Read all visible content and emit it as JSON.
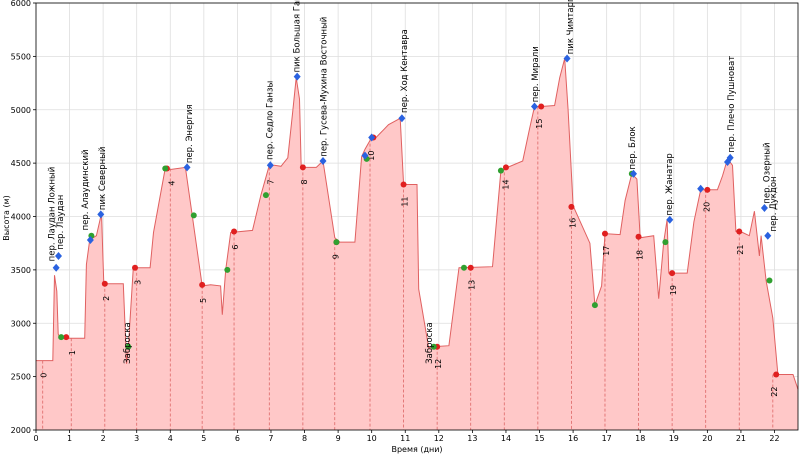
{
  "chart_data": {
    "type": "area",
    "title": "",
    "xlabel": "Время (дни)",
    "ylabel": "Высота (м)",
    "xlim": [
      0,
      22.7
    ],
    "ylim": [
      2000,
      6000
    ],
    "xticks": [
      "0",
      "1",
      "2",
      "3",
      "4",
      "5",
      "6",
      "7",
      "8",
      "9",
      "10",
      "11",
      "12",
      "13",
      "14",
      "15",
      "16",
      "17",
      "18",
      "19",
      "20",
      "21",
      "22"
    ],
    "yticks": [
      "2000",
      "2500",
      "3000",
      "3500",
      "4000",
      "4500",
      "5000",
      "5500",
      "6000"
    ],
    "colors": {
      "fill": "#ffc8c8",
      "line": "#e06060",
      "camp_line": "#dd6666",
      "red": "#e02020",
      "green": "#30a030",
      "blue": "#2a62e0",
      "grid": "#dedede"
    },
    "profile": [
      [
        0,
        2650
      ],
      [
        0.5,
        2650
      ],
      [
        0.55,
        3450
      ],
      [
        0.62,
        3300
      ],
      [
        0.66,
        2900
      ],
      [
        0.7,
        2870
      ],
      [
        0.9,
        2860
      ],
      [
        1.45,
        2860
      ],
      [
        1.5,
        3550
      ],
      [
        1.6,
        3780
      ],
      [
        1.8,
        3820
      ],
      [
        1.95,
        4030
      ],
      [
        2.02,
        3370
      ],
      [
        2.6,
        3370
      ],
      [
        2.7,
        2620
      ],
      [
        2.75,
        2770
      ],
      [
        2.9,
        3520
      ],
      [
        3.4,
        3520
      ],
      [
        3.5,
        3850
      ],
      [
        3.85,
        4450
      ],
      [
        4.0,
        4440
      ],
      [
        4.45,
        4460
      ],
      [
        4.65,
        4020
      ],
      [
        4.95,
        3350
      ],
      [
        5.2,
        3360
      ],
      [
        5.5,
        3350
      ],
      [
        5.55,
        3080
      ],
      [
        5.65,
        3500
      ],
      [
        5.8,
        3850
      ],
      [
        6.45,
        3870
      ],
      [
        6.7,
        4200
      ],
      [
        6.95,
        4480
      ],
      [
        7.1,
        4480
      ],
      [
        7.3,
        4470
      ],
      [
        7.5,
        4550
      ],
      [
        7.65,
        4990
      ],
      [
        7.75,
        5300
      ],
      [
        7.85,
        5100
      ],
      [
        7.9,
        4460
      ],
      [
        8.35,
        4460
      ],
      [
        8.55,
        4520
      ],
      [
        8.9,
        3800
      ],
      [
        9.05,
        3760
      ],
      [
        9.5,
        3760
      ],
      [
        9.7,
        4560
      ],
      [
        9.8,
        4630
      ],
      [
        10.0,
        4740
      ],
      [
        10.1,
        4730
      ],
      [
        10.5,
        4860
      ],
      [
        10.85,
        4920
      ],
      [
        10.95,
        4300
      ],
      [
        11.35,
        4300
      ],
      [
        11.4,
        3320
      ],
      [
        11.7,
        2770
      ],
      [
        11.8,
        2780
      ],
      [
        12.3,
        2790
      ],
      [
        12.6,
        3520
      ],
      [
        13.6,
        3530
      ],
      [
        13.85,
        4430
      ],
      [
        14.05,
        4460
      ],
      [
        14.5,
        4520
      ],
      [
        14.7,
        4820
      ],
      [
        14.85,
        5030
      ],
      [
        15.05,
        5030
      ],
      [
        15.45,
        5040
      ],
      [
        15.6,
        5300
      ],
      [
        15.75,
        5480
      ],
      [
        15.85,
        5000
      ],
      [
        16.0,
        4100
      ],
      [
        16.5,
        3750
      ],
      [
        16.65,
        3170
      ],
      [
        16.85,
        3350
      ],
      [
        16.95,
        3840
      ],
      [
        17.4,
        3830
      ],
      [
        17.55,
        4150
      ],
      [
        17.75,
        4400
      ],
      [
        17.9,
        4350
      ],
      [
        18.0,
        3800
      ],
      [
        18.4,
        3820
      ],
      [
        18.55,
        3230
      ],
      [
        18.7,
        3760
      ],
      [
        18.8,
        3970
      ],
      [
        18.85,
        3470
      ],
      [
        19.4,
        3470
      ],
      [
        19.6,
        3950
      ],
      [
        19.8,
        4250
      ],
      [
        20.3,
        4250
      ],
      [
        20.45,
        4380
      ],
      [
        20.6,
        4540
      ],
      [
        20.75,
        4480
      ],
      [
        20.85,
        3860
      ],
      [
        21.05,
        3850
      ],
      [
        21.25,
        3820
      ],
      [
        21.4,
        4050
      ],
      [
        21.55,
        3630
      ],
      [
        21.6,
        3820
      ],
      [
        21.75,
        3400
      ],
      [
        21.95,
        3050
      ],
      [
        22.1,
        2520
      ],
      [
        22.55,
        2520
      ],
      [
        22.7,
        2380
      ]
    ],
    "camps": [
      {
        "x": 0.2,
        "y": 2650,
        "label": "0"
      },
      {
        "x": 1.05,
        "y": 2860,
        "label": "1"
      },
      {
        "x": 2.05,
        "y": 3370,
        "label": "2"
      },
      {
        "x": 3.0,
        "y": 3520,
        "label": "3"
      },
      {
        "x": 4.0,
        "y": 4450,
        "label": "4"
      },
      {
        "x": 4.95,
        "y": 3350,
        "label": "5"
      },
      {
        "x": 5.9,
        "y": 3850,
        "label": "6"
      },
      {
        "x": 6.95,
        "y": 4460,
        "label": "7"
      },
      {
        "x": 7.95,
        "y": 4460,
        "label": "8"
      },
      {
        "x": 8.9,
        "y": 3760,
        "label": "9"
      },
      {
        "x": 9.95,
        "y": 4730,
        "label": "10"
      },
      {
        "x": 10.95,
        "y": 4300,
        "label": "11"
      },
      {
        "x": 11.95,
        "y": 2780,
        "label": "12"
      },
      {
        "x": 12.95,
        "y": 3520,
        "label": "13"
      },
      {
        "x": 13.95,
        "y": 4460,
        "label": "14"
      },
      {
        "x": 14.95,
        "y": 5030,
        "label": "15"
      },
      {
        "x": 15.95,
        "y": 4100,
        "label": "16"
      },
      {
        "x": 16.95,
        "y": 3840,
        "label": "17"
      },
      {
        "x": 17.95,
        "y": 3800,
        "label": "18"
      },
      {
        "x": 18.95,
        "y": 3470,
        "label": "19"
      },
      {
        "x": 19.95,
        "y": 4250,
        "label": "20"
      },
      {
        "x": 20.95,
        "y": 3850,
        "label": "21"
      },
      {
        "x": 21.95,
        "y": 2520,
        "label": "22"
      }
    ],
    "markers": [
      {
        "x": 0.9,
        "y": 2870,
        "color": "red"
      },
      {
        "x": 2.05,
        "y": 3370,
        "color": "red"
      },
      {
        "x": 2.95,
        "y": 3520,
        "color": "red"
      },
      {
        "x": 3.9,
        "y": 4450,
        "color": "red"
      },
      {
        "x": 4.95,
        "y": 3360,
        "color": "red"
      },
      {
        "x": 5.9,
        "y": 3860,
        "color": "red"
      },
      {
        "x": 7.95,
        "y": 4460,
        "color": "red"
      },
      {
        "x": 8.95,
        "y": 3760,
        "color": "red"
      },
      {
        "x": 10.05,
        "y": 4740,
        "color": "red"
      },
      {
        "x": 10.95,
        "y": 4300,
        "color": "red"
      },
      {
        "x": 11.95,
        "y": 2780,
        "color": "red"
      },
      {
        "x": 12.95,
        "y": 3520,
        "color": "red"
      },
      {
        "x": 14.0,
        "y": 4460,
        "color": "red"
      },
      {
        "x": 15.05,
        "y": 5030,
        "color": "red"
      },
      {
        "x": 15.95,
        "y": 4090,
        "color": "red"
      },
      {
        "x": 16.95,
        "y": 3840,
        "color": "red"
      },
      {
        "x": 17.95,
        "y": 3810,
        "color": "red"
      },
      {
        "x": 18.95,
        "y": 3470,
        "color": "red"
      },
      {
        "x": 20.0,
        "y": 4250,
        "color": "red"
      },
      {
        "x": 20.95,
        "y": 3860,
        "color": "red"
      },
      {
        "x": 22.05,
        "y": 2520,
        "color": "red"
      },
      {
        "x": 0.75,
        "y": 2870,
        "color": "green"
      },
      {
        "x": 1.65,
        "y": 3820,
        "color": "green"
      },
      {
        "x": 2.75,
        "y": 2780,
        "color": "green"
      },
      {
        "x": 3.85,
        "y": 4450,
        "color": "green"
      },
      {
        "x": 4.7,
        "y": 4010,
        "color": "green"
      },
      {
        "x": 5.7,
        "y": 3500,
        "color": "green"
      },
      {
        "x": 6.85,
        "y": 4200,
        "color": "green"
      },
      {
        "x": 8.95,
        "y": 3760,
        "color": "green"
      },
      {
        "x": 9.85,
        "y": 4540,
        "color": "green"
      },
      {
        "x": 11.85,
        "y": 2780,
        "color": "green"
      },
      {
        "x": 12.75,
        "y": 3520,
        "color": "green"
      },
      {
        "x": 13.85,
        "y": 4430,
        "color": "green"
      },
      {
        "x": 16.65,
        "y": 3170,
        "color": "green"
      },
      {
        "x": 17.75,
        "y": 4400,
        "color": "green"
      },
      {
        "x": 18.75,
        "y": 3760,
        "color": "green"
      },
      {
        "x": 21.85,
        "y": 3400,
        "color": "green"
      },
      {
        "x": 0.6,
        "y": 3520,
        "color": "blue"
      },
      {
        "x": 0.67,
        "y": 3630,
        "color": "blue"
      },
      {
        "x": 1.62,
        "y": 3780,
        "color": "blue"
      },
      {
        "x": 1.93,
        "y": 4020,
        "color": "blue"
      },
      {
        "x": 4.5,
        "y": 4460,
        "color": "blue"
      },
      {
        "x": 6.98,
        "y": 4480,
        "color": "blue"
      },
      {
        "x": 7.78,
        "y": 5310,
        "color": "blue"
      },
      {
        "x": 8.55,
        "y": 4520,
        "color": "blue"
      },
      {
        "x": 9.8,
        "y": 4570,
        "color": "blue"
      },
      {
        "x": 10.0,
        "y": 4740,
        "color": "blue"
      },
      {
        "x": 10.9,
        "y": 4920,
        "color": "blue"
      },
      {
        "x": 14.85,
        "y": 5030,
        "color": "blue"
      },
      {
        "x": 15.82,
        "y": 5480,
        "color": "blue"
      },
      {
        "x": 17.8,
        "y": 4400,
        "color": "blue"
      },
      {
        "x": 18.88,
        "y": 3970,
        "color": "blue"
      },
      {
        "x": 19.8,
        "y": 4260,
        "color": "blue"
      },
      {
        "x": 20.6,
        "y": 4510,
        "color": "blue"
      },
      {
        "x": 20.68,
        "y": 4550,
        "color": "blue"
      },
      {
        "x": 21.7,
        "y": 4080,
        "color": "blue"
      },
      {
        "x": 21.8,
        "y": 3820,
        "color": "blue"
      }
    ],
    "annotations": [
      {
        "x": 0.55,
        "y": 3580,
        "text": "пер. Лаудан Ложный"
      },
      {
        "x": 0.8,
        "y": 3690,
        "text": "пер. Лаудан"
      },
      {
        "x": 1.55,
        "y": 3870,
        "text": "пер. Алаудинский"
      },
      {
        "x": 2.05,
        "y": 4060,
        "text": "пик Северный"
      },
      {
        "x": 4.65,
        "y": 4500,
        "text": "пер. Энергия"
      },
      {
        "x": 7.05,
        "y": 4530,
        "text": "пер. Седло Ганзы"
      },
      {
        "x": 7.85,
        "y": 5350,
        "text": "пик Большая Ганза"
      },
      {
        "x": 8.65,
        "y": 4560,
        "text": "пер. Гусева-Мухина Восточный"
      },
      {
        "x": 11.05,
        "y": 4970,
        "text": "пер. Ход Кентавра"
      },
      {
        "x": 14.95,
        "y": 5070,
        "text": "пер. Мирали"
      },
      {
        "x": 16.0,
        "y": 5520,
        "text": "пик Чимтарга"
      },
      {
        "x": 17.85,
        "y": 4440,
        "text": "пер. Блок"
      },
      {
        "x": 18.95,
        "y": 4010,
        "text": "пер. Жанатар"
      },
      {
        "x": 20.8,
        "y": 4600,
        "text": "пер. Плечо Пушноват"
      },
      {
        "x": 21.85,
        "y": 4120,
        "text": "пер. Озерный"
      },
      {
        "x": 22.05,
        "y": 3860,
        "text": "пер. Дукдон"
      },
      {
        "x": 2.8,
        "y": 2620,
        "text": "Заброска"
      },
      {
        "x": 11.8,
        "y": 2620,
        "text": "Заброска"
      }
    ]
  }
}
